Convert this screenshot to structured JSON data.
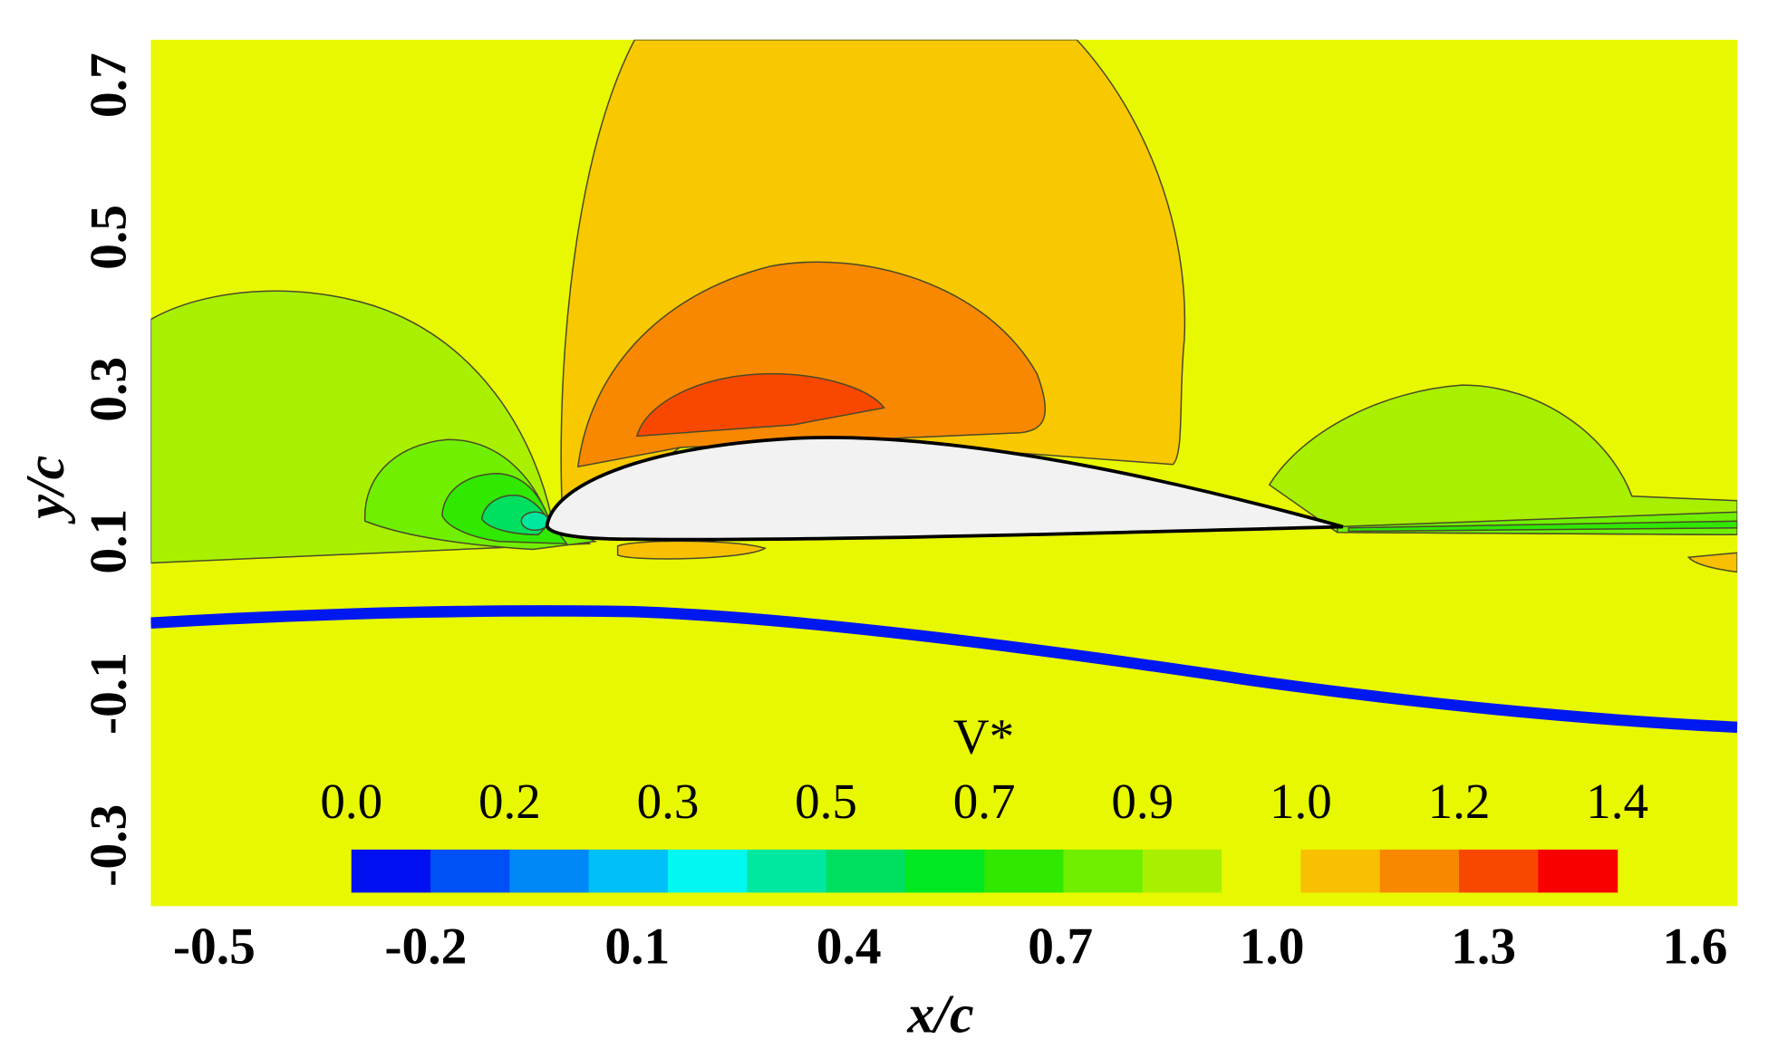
{
  "chart_data": {
    "type": "contour",
    "x_label": "x/c",
    "y_label": "y/c",
    "xlim": [
      -0.59,
      1.66
    ],
    "ylim": [
      -0.38,
      0.76
    ],
    "xticks": [
      -0.5,
      -0.2,
      0.1,
      0.4,
      0.7,
      {
        "value": 1,
        "label": "1.0"
      },
      1.3,
      1.6
    ],
    "yticks": [
      -0.3,
      -0.1,
      0.1,
      0.3,
      0.5,
      0.7
    ],
    "colorbar": {
      "title": "V*",
      "lim": [
        0,
        1.4
      ],
      "colors": [
        "#0010f0",
        "#0050f8",
        "#0088f8",
        "#00c0f8",
        "#00f8f0",
        "#00e8a0",
        "#00e060",
        "#00e820",
        "#30e800",
        "#70f000",
        "#a8f000",
        "#e8f800",
        "#f8c000",
        "#f88800",
        "#f84800",
        "#f80000"
      ],
      "ticks": [
        {
          "value": 0,
          "label": "0.0"
        },
        {
          "value": 0.175,
          "label": "0.2"
        },
        {
          "value": 0.35,
          "label": "0.3"
        },
        {
          "value": 0.525,
          "label": "0.5"
        },
        0.7,
        {
          "value": 0.875,
          "label": "0.9"
        },
        {
          "value": 1.05,
          "label": "1.0"
        },
        {
          "value": 1.225,
          "label": "1.2"
        },
        1.4
      ]
    }
  }
}
